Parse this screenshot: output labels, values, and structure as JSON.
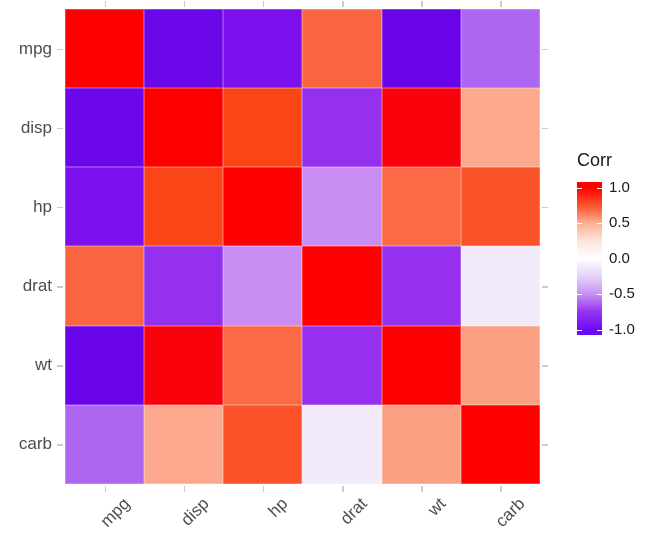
{
  "figure": {
    "background": "#FFFFFF",
    "axis_text_color": "#4D4D4D",
    "tick_mark_color": "#CCCCCC"
  },
  "chart_data": {
    "type": "heatmap",
    "title": "",
    "variables": [
      "mpg",
      "disp",
      "hp",
      "drat",
      "wt",
      "carb"
    ],
    "x_tick_labels": [
      "mpg",
      "disp",
      "hp",
      "drat",
      "wt",
      "carb"
    ],
    "y_tick_labels": [
      "mpg",
      "disp",
      "hp",
      "drat",
      "wt",
      "carb"
    ],
    "values": [
      [
        1.0,
        -0.85,
        -0.78,
        0.68,
        -0.87,
        -0.55
      ],
      [
        -0.85,
        1.0,
        0.79,
        -0.71,
        0.89,
        0.39
      ],
      [
        -0.78,
        0.79,
        1.0,
        -0.45,
        0.66,
        0.75
      ],
      [
        0.68,
        -0.71,
        -0.45,
        1.0,
        -0.71,
        -0.09
      ],
      [
        -0.87,
        0.89,
        0.66,
        -0.71,
        1.0,
        0.43
      ],
      [
        -0.55,
        0.39,
        0.75,
        -0.09,
        0.43,
        1.0
      ]
    ],
    "cell_colors": [
      [
        "#FE0000",
        "#6B07E9",
        "#7C10EC",
        "#FB6440",
        "#6903E8",
        "#AC66F2"
      ],
      [
        "#6B07E9",
        "#FE0000",
        "#FA4517",
        "#9430EE",
        "#FA020B",
        "#FCA98D"
      ],
      [
        "#7C10EC",
        "#FA4517",
        "#FE0000",
        "#C98CF2",
        "#FB6A44",
        "#FB5229"
      ],
      [
        "#FB6440",
        "#9430EE",
        "#C98CF2",
        "#FE0000",
        "#9430EE",
        "#F3EBF9"
      ],
      [
        "#6903E8",
        "#FA020B",
        "#FB6A44",
        "#9430EE",
        "#FE0000",
        "#FCA183"
      ],
      [
        "#AC66F2",
        "#FCA98D",
        "#FB5229",
        "#F3EBF9",
        "#FCA183",
        "#FE0000"
      ]
    ],
    "legend": {
      "title": "Corr",
      "position": "right",
      "range": [
        -1.0,
        1.0
      ],
      "tick_values": [
        1.0,
        0.5,
        0.0,
        -0.5,
        -1.0
      ],
      "tick_labels": [
        "1.0",
        "0.5",
        "0.0",
        "-0.5",
        "-1.0"
      ],
      "gradient_stops": [
        {
          "value": 1.0,
          "color": "#FF0000"
        },
        {
          "value": 0.75,
          "color": "#FB5229"
        },
        {
          "value": 0.5,
          "color": "#FCAE93"
        },
        {
          "value": 0.25,
          "color": "#FEE4DC"
        },
        {
          "value": 0.0,
          "color": "#FFFFFF"
        },
        {
          "value": -0.25,
          "color": "#E7D2F8"
        },
        {
          "value": -0.5,
          "color": "#C591F3"
        },
        {
          "value": -0.75,
          "color": "#9733F0"
        },
        {
          "value": -1.0,
          "color": "#6B0BF7"
        }
      ]
    },
    "grid": false
  }
}
